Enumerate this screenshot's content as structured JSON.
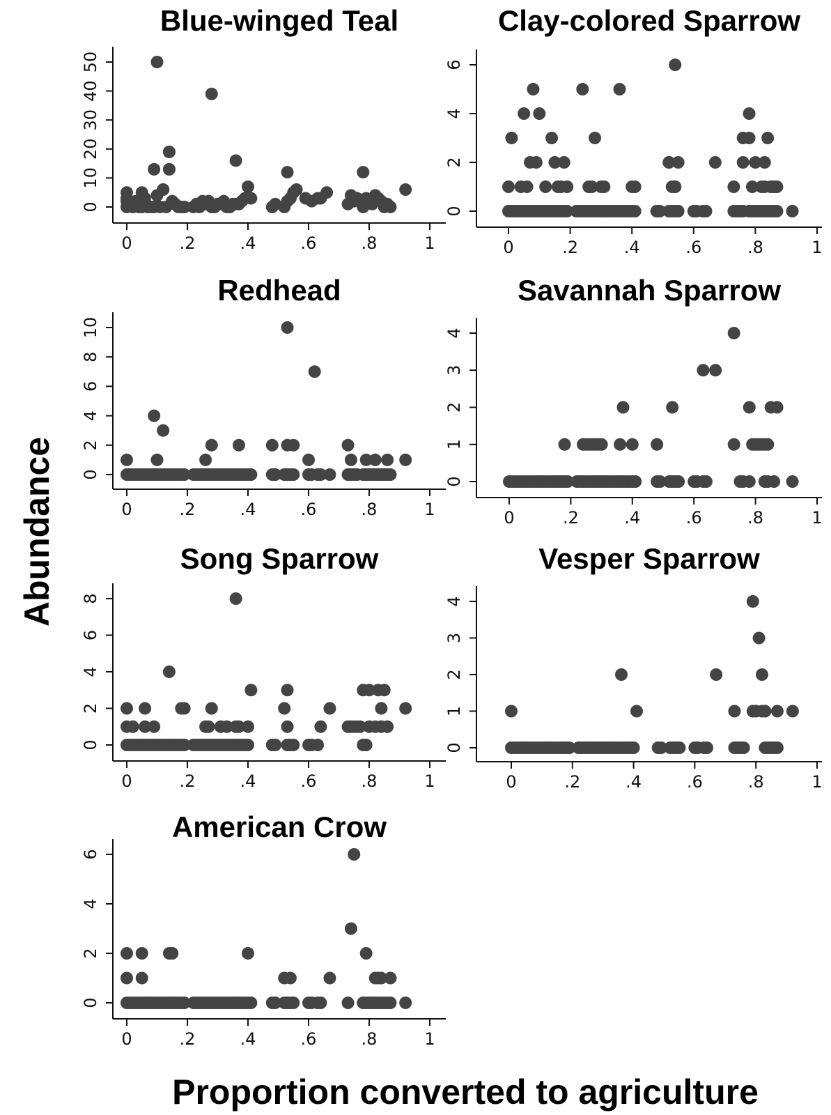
{
  "xlabel": "Proportion converted to agriculture",
  "ylabel": "Abundance",
  "point_color": "#444444",
  "chart_data": [
    {
      "type": "scatter",
      "title": "Blue-winged Teal",
      "xlim": [
        0,
        1
      ],
      "ylim": [
        0,
        50
      ],
      "xticks": [
        0,
        0.2,
        0.4,
        0.6,
        0.8,
        1
      ],
      "xtick_labels": [
        "0",
        ".2",
        ".4",
        ".6",
        ".8",
        "1"
      ],
      "yticks": [
        0,
        10,
        20,
        30,
        40,
        50
      ],
      "ytick_labels": [
        "0",
        "10",
        "20",
        "30",
        "40",
        "50"
      ],
      "x": [
        0.0,
        0.0,
        0.0,
        0.0,
        0.01,
        0.02,
        0.03,
        0.04,
        0.05,
        0.05,
        0.06,
        0.07,
        0.08,
        0.09,
        0.1,
        0.1,
        0.11,
        0.12,
        0.13,
        0.14,
        0.14,
        0.15,
        0.16,
        0.17,
        0.18,
        0.19,
        0.22,
        0.23,
        0.24,
        0.25,
        0.26,
        0.27,
        0.28,
        0.29,
        0.3,
        0.31,
        0.32,
        0.33,
        0.34,
        0.35,
        0.36,
        0.37,
        0.38,
        0.39,
        0.4,
        0.41,
        0.48,
        0.49,
        0.52,
        0.53,
        0.54,
        0.55,
        0.56,
        0.59,
        0.61,
        0.63,
        0.64,
        0.66,
        0.73,
        0.74,
        0.75,
        0.76,
        0.78,
        0.79,
        0.8,
        0.81,
        0.82,
        0.83,
        0.84,
        0.85,
        0.86,
        0.87,
        0.92,
        0.05,
        0.09,
        0.28,
        0.14,
        0.14,
        0.12,
        0.36,
        0.53,
        0.78
      ],
      "y": [
        0,
        2,
        3,
        5,
        1,
        0,
        2,
        0,
        1,
        5,
        3,
        0,
        0,
        0,
        50,
        4,
        0,
        6,
        0,
        13,
        19,
        2,
        1,
        0,
        0,
        0,
        0,
        1,
        0,
        2,
        1,
        2,
        0,
        0,
        1,
        1,
        2,
        0,
        0,
        1,
        1,
        1,
        2,
        3,
        7,
        3,
        0,
        1,
        0,
        2,
        3,
        5,
        6,
        3,
        2,
        3,
        3,
        5,
        1,
        4,
        2,
        3,
        0,
        3,
        2,
        1,
        4,
        3,
        2,
        0,
        1,
        0,
        6,
        0,
        13,
        39,
        13,
        19,
        6,
        16,
        12,
        12
      ]
    },
    {
      "type": "scatter",
      "title": "Clay-colored Sparrow",
      "xlim": [
        0,
        1
      ],
      "ylim": [
        0,
        6
      ],
      "xticks": [
        0,
        0.2,
        0.4,
        0.6,
        0.8,
        1
      ],
      "xtick_labels": [
        "0",
        ".2",
        ".4",
        ".6",
        ".8",
        "1"
      ],
      "yticks": [
        0,
        2,
        4,
        6
      ],
      "ytick_labels": [
        "0",
        "2",
        "4",
        "6"
      ],
      "x": [
        0.0,
        0.01,
        0.02,
        0.03,
        0.04,
        0.05,
        0.06,
        0.07,
        0.08,
        0.09,
        0.1,
        0.11,
        0.12,
        0.13,
        0.14,
        0.15,
        0.16,
        0.17,
        0.18,
        0.19,
        0.22,
        0.23,
        0.24,
        0.25,
        0.26,
        0.27,
        0.28,
        0.29,
        0.3,
        0.31,
        0.32,
        0.33,
        0.34,
        0.35,
        0.36,
        0.37,
        0.38,
        0.39,
        0.4,
        0.41,
        0.48,
        0.49,
        0.52,
        0.53,
        0.54,
        0.55,
        0.6,
        0.61,
        0.63,
        0.64,
        0.73,
        0.74,
        0.75,
        0.76,
        0.78,
        0.79,
        0.8,
        0.81,
        0.82,
        0.83,
        0.84,
        0.85,
        0.86,
        0.87,
        0.92,
        0.0,
        0.01,
        0.04,
        0.05,
        0.06,
        0.07,
        0.08,
        0.09,
        0.1,
        0.12,
        0.14,
        0.15,
        0.16,
        0.17,
        0.18,
        0.19,
        0.24,
        0.26,
        0.27,
        0.28,
        0.3,
        0.31,
        0.36,
        0.4,
        0.41,
        0.52,
        0.53,
        0.54,
        0.55,
        0.52,
        0.54,
        0.54,
        0.67,
        0.73,
        0.76,
        0.78,
        0.78,
        0.79,
        0.8,
        0.82,
        0.83,
        0.84,
        0.85,
        0.86,
        0.87,
        0.76,
        0.83
      ],
      "y": [
        0,
        0,
        0,
        0,
        0,
        0,
        0,
        0,
        0,
        0,
        0,
        0,
        0,
        0,
        0,
        0,
        0,
        0,
        0,
        0,
        0,
        0,
        0,
        0,
        0,
        0,
        0,
        0,
        0,
        0,
        0,
        0,
        0,
        0,
        0,
        0,
        0,
        0,
        0,
        0,
        0,
        0,
        0,
        0,
        0,
        0,
        0,
        0,
        0,
        0,
        0,
        0,
        0,
        0,
        0,
        0,
        0,
        0,
        0,
        0,
        0,
        0,
        0,
        0,
        0,
        1,
        3,
        1,
        4,
        1,
        2,
        5,
        2,
        4,
        1,
        3,
        2,
        1,
        1,
        2,
        1,
        5,
        1,
        1,
        3,
        1,
        1,
        5,
        1,
        1,
        2,
        1,
        1,
        2,
        2,
        6,
        1,
        2,
        1,
        2,
        3,
        4,
        1,
        2,
        1,
        1,
        3,
        1,
        1,
        1,
        3,
        2
      ]
    },
    {
      "type": "scatter",
      "title": "Redhead",
      "xlim": [
        0,
        1
      ],
      "ylim": [
        0,
        10
      ],
      "xticks": [
        0,
        0.2,
        0.4,
        0.6,
        0.8,
        1
      ],
      "xtick_labels": [
        "0",
        ".2",
        ".4",
        ".6",
        ".8",
        "1"
      ],
      "yticks": [
        0,
        2,
        4,
        6,
        8,
        10
      ],
      "ytick_labels": [
        "0",
        "2",
        "4",
        "6",
        "8",
        "10"
      ],
      "x": [
        0.0,
        0.01,
        0.02,
        0.03,
        0.04,
        0.05,
        0.06,
        0.07,
        0.08,
        0.09,
        0.1,
        0.11,
        0.12,
        0.13,
        0.14,
        0.15,
        0.16,
        0.17,
        0.18,
        0.19,
        0.22,
        0.23,
        0.24,
        0.25,
        0.26,
        0.27,
        0.28,
        0.29,
        0.3,
        0.31,
        0.32,
        0.33,
        0.34,
        0.35,
        0.36,
        0.37,
        0.38,
        0.39,
        0.4,
        0.41,
        0.48,
        0.49,
        0.52,
        0.53,
        0.54,
        0.55,
        0.6,
        0.61,
        0.63,
        0.64,
        0.67,
        0.73,
        0.74,
        0.75,
        0.76,
        0.78,
        0.79,
        0.8,
        0.81,
        0.82,
        0.83,
        0.84,
        0.85,
        0.86,
        0.87,
        0.0,
        0.09,
        0.1,
        0.12,
        0.26,
        0.28,
        0.37,
        0.48,
        0.53,
        0.55,
        0.6,
        0.62,
        0.53,
        0.73,
        0.74,
        0.79,
        0.82,
        0.86,
        0.92
      ],
      "y": [
        0,
        0,
        0,
        0,
        0,
        0,
        0,
        0,
        0,
        0,
        0,
        0,
        0,
        0,
        0,
        0,
        0,
        0,
        0,
        0,
        0,
        0,
        0,
        0,
        0,
        0,
        0,
        0,
        0,
        0,
        0,
        0,
        0,
        0,
        0,
        0,
        0,
        0,
        0,
        0,
        0,
        0,
        0,
        0,
        0,
        0,
        0,
        0,
        0,
        0,
        0,
        0,
        0,
        0,
        0,
        0,
        0,
        0,
        0,
        0,
        0,
        0,
        0,
        0,
        0,
        1,
        4,
        1,
        3,
        1,
        2,
        2,
        2,
        2,
        2,
        1,
        7,
        10,
        2,
        1,
        1,
        1,
        1,
        1
      ]
    },
    {
      "type": "scatter",
      "title": "Savannah Sparrow",
      "xlim": [
        0,
        1
      ],
      "ylim": [
        0,
        4
      ],
      "xticks": [
        0,
        0.2,
        0.4,
        0.6,
        0.8,
        1
      ],
      "xtick_labels": [
        "0",
        ".2",
        ".4",
        ".6",
        ".8",
        "1"
      ],
      "yticks": [
        0,
        1,
        2,
        3,
        4
      ],
      "ytick_labels": [
        "0",
        "1",
        "2",
        "3",
        "4"
      ],
      "x": [
        0.0,
        0.01,
        0.02,
        0.03,
        0.04,
        0.05,
        0.06,
        0.07,
        0.08,
        0.09,
        0.1,
        0.11,
        0.12,
        0.13,
        0.14,
        0.15,
        0.16,
        0.17,
        0.18,
        0.19,
        0.22,
        0.23,
        0.24,
        0.25,
        0.26,
        0.27,
        0.28,
        0.29,
        0.3,
        0.31,
        0.32,
        0.33,
        0.34,
        0.35,
        0.36,
        0.37,
        0.38,
        0.39,
        0.4,
        0.41,
        0.48,
        0.49,
        0.52,
        0.53,
        0.54,
        0.55,
        0.6,
        0.61,
        0.63,
        0.64,
        0.75,
        0.76,
        0.78,
        0.83,
        0.84,
        0.86,
        0.92,
        0.18,
        0.24,
        0.25,
        0.26,
        0.27,
        0.28,
        0.29,
        0.3,
        0.36,
        0.4,
        0.48,
        0.37,
        0.53,
        0.63,
        0.67,
        0.73,
        0.73,
        0.79,
        0.8,
        0.81,
        0.82,
        0.83,
        0.84,
        0.78,
        0.85,
        0.87
      ],
      "y": [
        0,
        0,
        0,
        0,
        0,
        0,
        0,
        0,
        0,
        0,
        0,
        0,
        0,
        0,
        0,
        0,
        0,
        0,
        0,
        0,
        0,
        0,
        0,
        0,
        0,
        0,
        0,
        0,
        0,
        0,
        0,
        0,
        0,
        0,
        0,
        0,
        0,
        0,
        0,
        0,
        0,
        0,
        0,
        0,
        0,
        0,
        0,
        0,
        0,
        0,
        0,
        0,
        0,
        0,
        0,
        0,
        0,
        1,
        1,
        1,
        1,
        1,
        1,
        1,
        1,
        1,
        1,
        1,
        2,
        2,
        3,
        3,
        4,
        1,
        1,
        1,
        1,
        1,
        1,
        1,
        2,
        2,
        2
      ]
    },
    {
      "type": "scatter",
      "title": "Song Sparrow",
      "xlim": [
        0,
        1
      ],
      "ylim": [
        0,
        8
      ],
      "xticks": [
        0,
        0.2,
        0.4,
        0.6,
        0.8,
        1
      ],
      "xtick_labels": [
        "0",
        ".2",
        ".4",
        ".6",
        ".8",
        "1"
      ],
      "yticks": [
        0,
        2,
        4,
        6,
        8
      ],
      "ytick_labels": [
        "0",
        "2",
        "4",
        "6",
        "8"
      ],
      "x": [
        0.0,
        0.01,
        0.02,
        0.03,
        0.04,
        0.05,
        0.06,
        0.07,
        0.08,
        0.09,
        0.1,
        0.11,
        0.12,
        0.13,
        0.14,
        0.15,
        0.16,
        0.17,
        0.18,
        0.19,
        0.22,
        0.23,
        0.24,
        0.25,
        0.26,
        0.27,
        0.28,
        0.29,
        0.3,
        0.31,
        0.32,
        0.33,
        0.34,
        0.35,
        0.36,
        0.37,
        0.38,
        0.39,
        0.4,
        0.48,
        0.49,
        0.53,
        0.54,
        0.55,
        0.6,
        0.61,
        0.63,
        0.78,
        0.79,
        0.0,
        0.02,
        0.06,
        0.09,
        0.26,
        0.27,
        0.31,
        0.33,
        0.36,
        0.37,
        0.4,
        0.53,
        0.64,
        0.73,
        0.74,
        0.75,
        0.76,
        0.77,
        0.8,
        0.82,
        0.84,
        0.86,
        0.0,
        0.06,
        0.18,
        0.19,
        0.28,
        0.52,
        0.67,
        0.84,
        0.92,
        0.14,
        0.53,
        0.78,
        0.8,
        0.83,
        0.85,
        0.41,
        0.36
      ],
      "y": [
        0,
        0,
        0,
        0,
        0,
        0,
        0,
        0,
        0,
        0,
        0,
        0,
        0,
        0,
        0,
        0,
        0,
        0,
        0,
        0,
        0,
        0,
        0,
        0,
        0,
        0,
        0,
        0,
        0,
        0,
        0,
        0,
        0,
        0,
        0,
        0,
        0,
        0,
        0,
        0,
        0,
        0,
        0,
        0,
        0,
        0,
        0,
        0,
        0,
        1,
        1,
        1,
        1,
        1,
        1,
        1,
        1,
        1,
        1,
        1,
        1,
        1,
        1,
        1,
        1,
        1,
        1,
        1,
        1,
        1,
        1,
        2,
        2,
        2,
        2,
        2,
        2,
        2,
        2,
        2,
        4,
        3,
        3,
        3,
        3,
        3,
        3,
        8
      ]
    },
    {
      "type": "scatter",
      "title": "Vesper Sparrow",
      "xlim": [
        0,
        1
      ],
      "ylim": [
        0,
        4
      ],
      "xticks": [
        0,
        0.2,
        0.4,
        0.6,
        0.8,
        1
      ],
      "xtick_labels": [
        "0",
        ".2",
        ".4",
        ".6",
        ".8",
        "1"
      ],
      "yticks": [
        0,
        1,
        2,
        3,
        4
      ],
      "ytick_labels": [
        "0",
        "1",
        "2",
        "3",
        "4"
      ],
      "x": [
        0.0,
        0.01,
        0.02,
        0.03,
        0.04,
        0.05,
        0.06,
        0.07,
        0.08,
        0.09,
        0.1,
        0.11,
        0.12,
        0.13,
        0.14,
        0.15,
        0.16,
        0.17,
        0.18,
        0.19,
        0.22,
        0.23,
        0.24,
        0.25,
        0.26,
        0.27,
        0.28,
        0.29,
        0.3,
        0.31,
        0.32,
        0.33,
        0.34,
        0.35,
        0.36,
        0.37,
        0.38,
        0.39,
        0.4,
        0.48,
        0.49,
        0.52,
        0.53,
        0.54,
        0.55,
        0.6,
        0.61,
        0.63,
        0.64,
        0.73,
        0.74,
        0.75,
        0.76,
        0.83,
        0.84,
        0.85,
        0.86,
        0.87,
        0.0,
        0.41,
        0.73,
        0.79,
        0.8,
        0.82,
        0.83,
        0.87,
        0.92,
        0.36,
        0.67,
        0.82,
        0.81,
        0.79
      ],
      "y": [
        0,
        0,
        0,
        0,
        0,
        0,
        0,
        0,
        0,
        0,
        0,
        0,
        0,
        0,
        0,
        0,
        0,
        0,
        0,
        0,
        0,
        0,
        0,
        0,
        0,
        0,
        0,
        0,
        0,
        0,
        0,
        0,
        0,
        0,
        0,
        0,
        0,
        0,
        0,
        0,
        0,
        0,
        0,
        0,
        0,
        0,
        0,
        0,
        0,
        0,
        0,
        0,
        0,
        0,
        0,
        0,
        0,
        0,
        1,
        1,
        1,
        1,
        1,
        1,
        1,
        1,
        1,
        2,
        2,
        2,
        3,
        4
      ]
    },
    {
      "type": "scatter",
      "title": "American Crow",
      "xlim": [
        0,
        1
      ],
      "ylim": [
        0,
        6
      ],
      "xticks": [
        0,
        0.2,
        0.4,
        0.6,
        0.8,
        1
      ],
      "xtick_labels": [
        "0",
        ".2",
        ".4",
        ".6",
        ".8",
        "1"
      ],
      "yticks": [
        0,
        2,
        4,
        6
      ],
      "ytick_labels": [
        "0",
        "2",
        "4",
        "6"
      ],
      "x": [
        0.0,
        0.01,
        0.02,
        0.03,
        0.04,
        0.05,
        0.06,
        0.07,
        0.08,
        0.09,
        0.1,
        0.11,
        0.12,
        0.13,
        0.14,
        0.15,
        0.16,
        0.17,
        0.18,
        0.19,
        0.22,
        0.23,
        0.24,
        0.25,
        0.26,
        0.27,
        0.28,
        0.29,
        0.3,
        0.31,
        0.32,
        0.33,
        0.34,
        0.35,
        0.36,
        0.37,
        0.38,
        0.39,
        0.4,
        0.41,
        0.48,
        0.49,
        0.52,
        0.53,
        0.54,
        0.55,
        0.6,
        0.61,
        0.63,
        0.64,
        0.73,
        0.78,
        0.79,
        0.8,
        0.81,
        0.82,
        0.83,
        0.84,
        0.85,
        0.86,
        0.87,
        0.92,
        0.0,
        0.05,
        0.52,
        0.54,
        0.67,
        0.82,
        0.83,
        0.84,
        0.87,
        0.0,
        0.05,
        0.14,
        0.15,
        0.4,
        0.79,
        0.74,
        0.75
      ],
      "y": [
        0,
        0,
        0,
        0,
        0,
        0,
        0,
        0,
        0,
        0,
        0,
        0,
        0,
        0,
        0,
        0,
        0,
        0,
        0,
        0,
        0,
        0,
        0,
        0,
        0,
        0,
        0,
        0,
        0,
        0,
        0,
        0,
        0,
        0,
        0,
        0,
        0,
        0,
        0,
        0,
        0,
        0,
        0,
        0,
        0,
        0,
        0,
        0,
        0,
        0,
        0,
        0,
        0,
        0,
        0,
        0,
        0,
        0,
        0,
        0,
        0,
        0,
        1,
        1,
        1,
        1,
        1,
        1,
        1,
        1,
        1,
        2,
        2,
        2,
        2,
        2,
        2,
        3,
        6
      ]
    }
  ]
}
